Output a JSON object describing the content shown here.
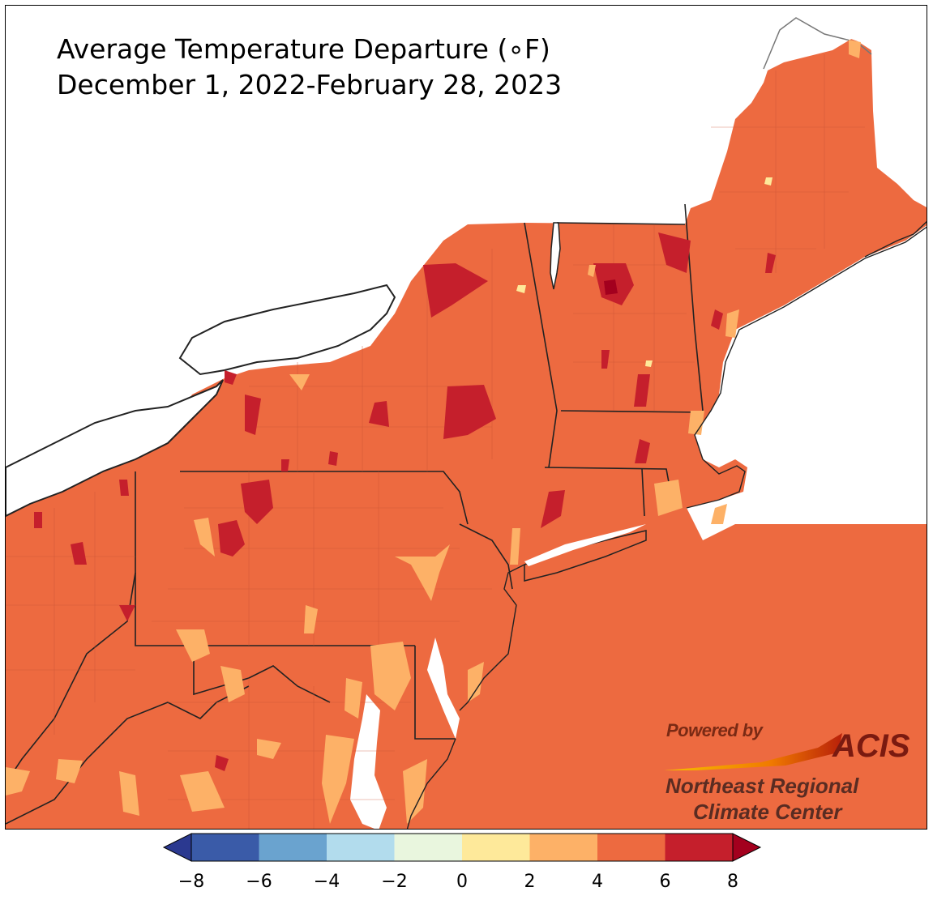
{
  "map": {
    "title_line1": "Average Temperature Departure (∘F)",
    "title_line2": "December 1, 2022-February 28, 2023",
    "background_color": "#ed6a40",
    "water_color": "#ffffff",
    "border_color": "#222222",
    "county_line_color": "#c95434"
  },
  "legend": {
    "bins": [
      {
        "from": -8,
        "to": -6,
        "color": "#3a5ba8"
      },
      {
        "from": -6,
        "to": -4,
        "color": "#6aa3cf"
      },
      {
        "from": -4,
        "to": -2,
        "color": "#b2dced"
      },
      {
        "from": -2,
        "to": 0,
        "color": "#e9f6de"
      },
      {
        "from": 0,
        "to": 2,
        "color": "#fee99a"
      },
      {
        "from": 2,
        "to": 4,
        "color": "#fdb167"
      },
      {
        "from": 4,
        "to": 6,
        "color": "#ed6a40"
      },
      {
        "from": 6,
        "to": 8,
        "color": "#c51f2c"
      }
    ],
    "under_color": "#2b3990",
    "over_color": "#a3001e",
    "ticks": [
      "−8",
      "−6",
      "−4",
      "−2",
      "0",
      "2",
      "4",
      "6",
      "8"
    ]
  },
  "logo": {
    "powered_by": "Powered by",
    "acis": "ACIS",
    "org_line1": "Northeast Regional",
    "org_line2": "Climate Center"
  }
}
